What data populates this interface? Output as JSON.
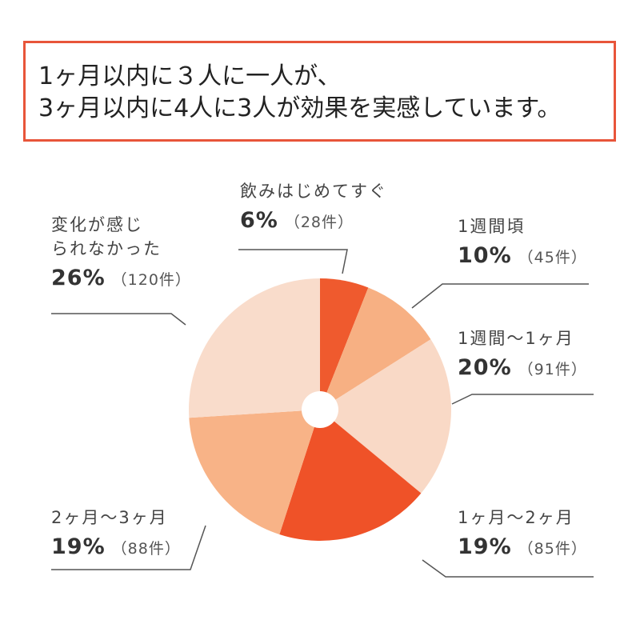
{
  "headline": {
    "line1": "1ヶ月以内に３人に一人が、",
    "line2": "3ヶ月以内に4人に3人が効果を実感しています。",
    "border_color": "#e8553a"
  },
  "chart_data": {
    "type": "pie",
    "donut_hole": true,
    "start_angle_deg": 0,
    "direction": "clockwise",
    "slices": [
      {
        "label": "飲みはじめてすぐ",
        "label_lines": [
          "飲みはじめてすぐ"
        ],
        "value": 6,
        "percent_label": "6%",
        "count_label": "（28件）",
        "color": "#ef5a2e"
      },
      {
        "label": "1週間頃",
        "label_lines": [
          "1週間頃"
        ],
        "value": 10,
        "percent_label": "10%",
        "count_label": "（45件）",
        "color": "#f7b083"
      },
      {
        "label": "1週間〜1ヶ月",
        "label_lines": [
          "1週間〜1ヶ月"
        ],
        "value": 20,
        "percent_label": "20%",
        "count_label": "（91件）",
        "color": "#f9d9c6"
      },
      {
        "label": "1ヶ月〜2ヶ月",
        "label_lines": [
          "1ヶ月〜2ヶ月"
        ],
        "value": 19,
        "percent_label": "19%",
        "count_label": "（85件）",
        "color": "#ef5228"
      },
      {
        "label": "2ヶ月〜3ヶ月",
        "label_lines": [
          "2ヶ月〜3ヶ月"
        ],
        "value": 19,
        "percent_label": "19%",
        "count_label": "（88件）",
        "color": "#f8b387"
      },
      {
        "label": "変化が感じられなかった",
        "label_lines": [
          "変化が感じ",
          "られなかった"
        ],
        "value": 26,
        "percent_label": "26%",
        "count_label": "（120件）",
        "color": "#f9dccb"
      }
    ]
  }
}
